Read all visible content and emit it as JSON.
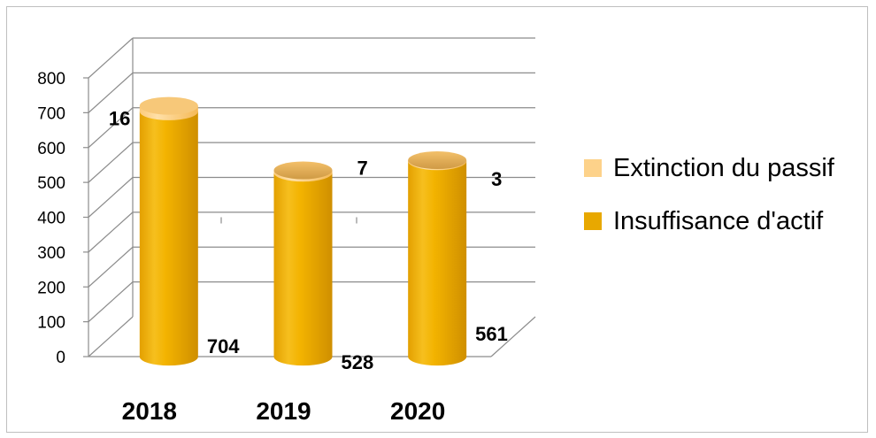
{
  "chart_data": {
    "type": "bar",
    "title": "",
    "xlabel": "",
    "ylabel": "",
    "ylim": [
      0,
      800
    ],
    "yticks": [
      0,
      100,
      200,
      300,
      400,
      500,
      600,
      700,
      800
    ],
    "categories": [
      "2018",
      "2019",
      "2020"
    ],
    "stacked": true,
    "series": [
      {
        "name": "Insuffisance d'actif",
        "values": [
          704,
          528,
          561
        ],
        "color": "#e8a800"
      },
      {
        "name": "Extinction du passif",
        "values": [
          16,
          7,
          3
        ],
        "color": "#fdd28a"
      }
    ],
    "data_labels": {
      "Insuffisance d'actif": [
        "704",
        "528",
        "561"
      ],
      "Extinction du passif": [
        "16",
        "7",
        "3"
      ]
    },
    "legend": "right",
    "grid": true,
    "style": "3d-cylinder"
  }
}
